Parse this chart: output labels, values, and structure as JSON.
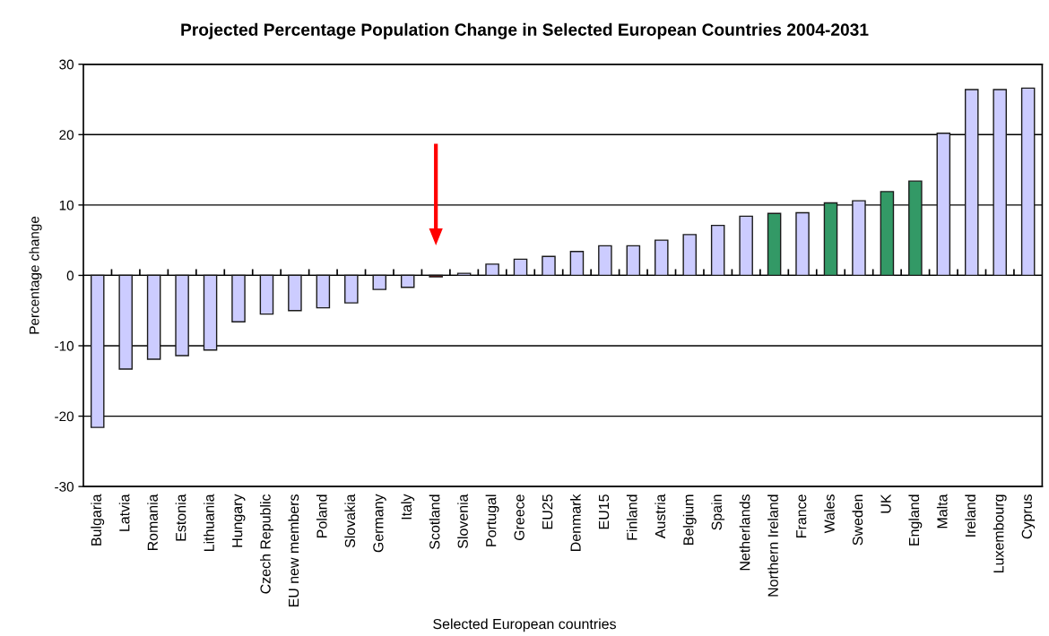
{
  "chart_data": {
    "type": "bar",
    "title": "Projected Percentage Population Change in Selected European Countries 2004-2031",
    "xlabel": "Selected European countries",
    "ylabel": "Percentage change",
    "categories": [
      "Bulgaria",
      "Latvia",
      "Romania",
      "Estonia",
      "Lithuania",
      "Hungary",
      "Czech Republic",
      "EU new members",
      "Poland",
      "Slovakia",
      "Germany",
      "Italy",
      "Scotland",
      "Slovenia",
      "Portugal",
      "Greece",
      "EU25",
      "Denmark",
      "EU15",
      "Finland",
      "Austria",
      "Belgium",
      "Spain",
      "Netherlands",
      "Northern Ireland",
      "France",
      "Wales",
      "Sweden",
      "UK",
      "England",
      "Malta",
      "Ireland",
      "Luxembourg",
      "Cyprus"
    ],
    "values": [
      -21.6,
      -13.3,
      -11.9,
      -11.4,
      -10.6,
      -6.6,
      -5.5,
      -5.0,
      -4.6,
      -3.9,
      -2.0,
      -1.7,
      -0.2,
      0.3,
      1.6,
      2.3,
      2.7,
      3.4,
      4.2,
      4.2,
      5.0,
      5.8,
      7.1,
      8.4,
      8.8,
      8.9,
      10.3,
      10.6,
      11.9,
      13.4,
      20.2,
      26.4,
      26.4,
      26.6
    ],
    "colors": [
      "#ccccff",
      "#ccccff",
      "#ccccff",
      "#ccccff",
      "#ccccff",
      "#ccccff",
      "#ccccff",
      "#ccccff",
      "#ccccff",
      "#ccccff",
      "#ccccff",
      "#ccccff",
      "#cc0000",
      "#ccccff",
      "#ccccff",
      "#ccccff",
      "#ccccff",
      "#ccccff",
      "#ccccff",
      "#ccccff",
      "#ccccff",
      "#ccccff",
      "#ccccff",
      "#ccccff",
      "#339966",
      "#ccccff",
      "#339966",
      "#ccccff",
      "#339966",
      "#339966",
      "#ccccff",
      "#ccccff",
      "#ccccff",
      "#ccccff"
    ],
    "ylim": [
      -30,
      30
    ],
    "yticks": [
      -30,
      -20,
      -10,
      0,
      10,
      20,
      30
    ],
    "grid": "y"
  }
}
